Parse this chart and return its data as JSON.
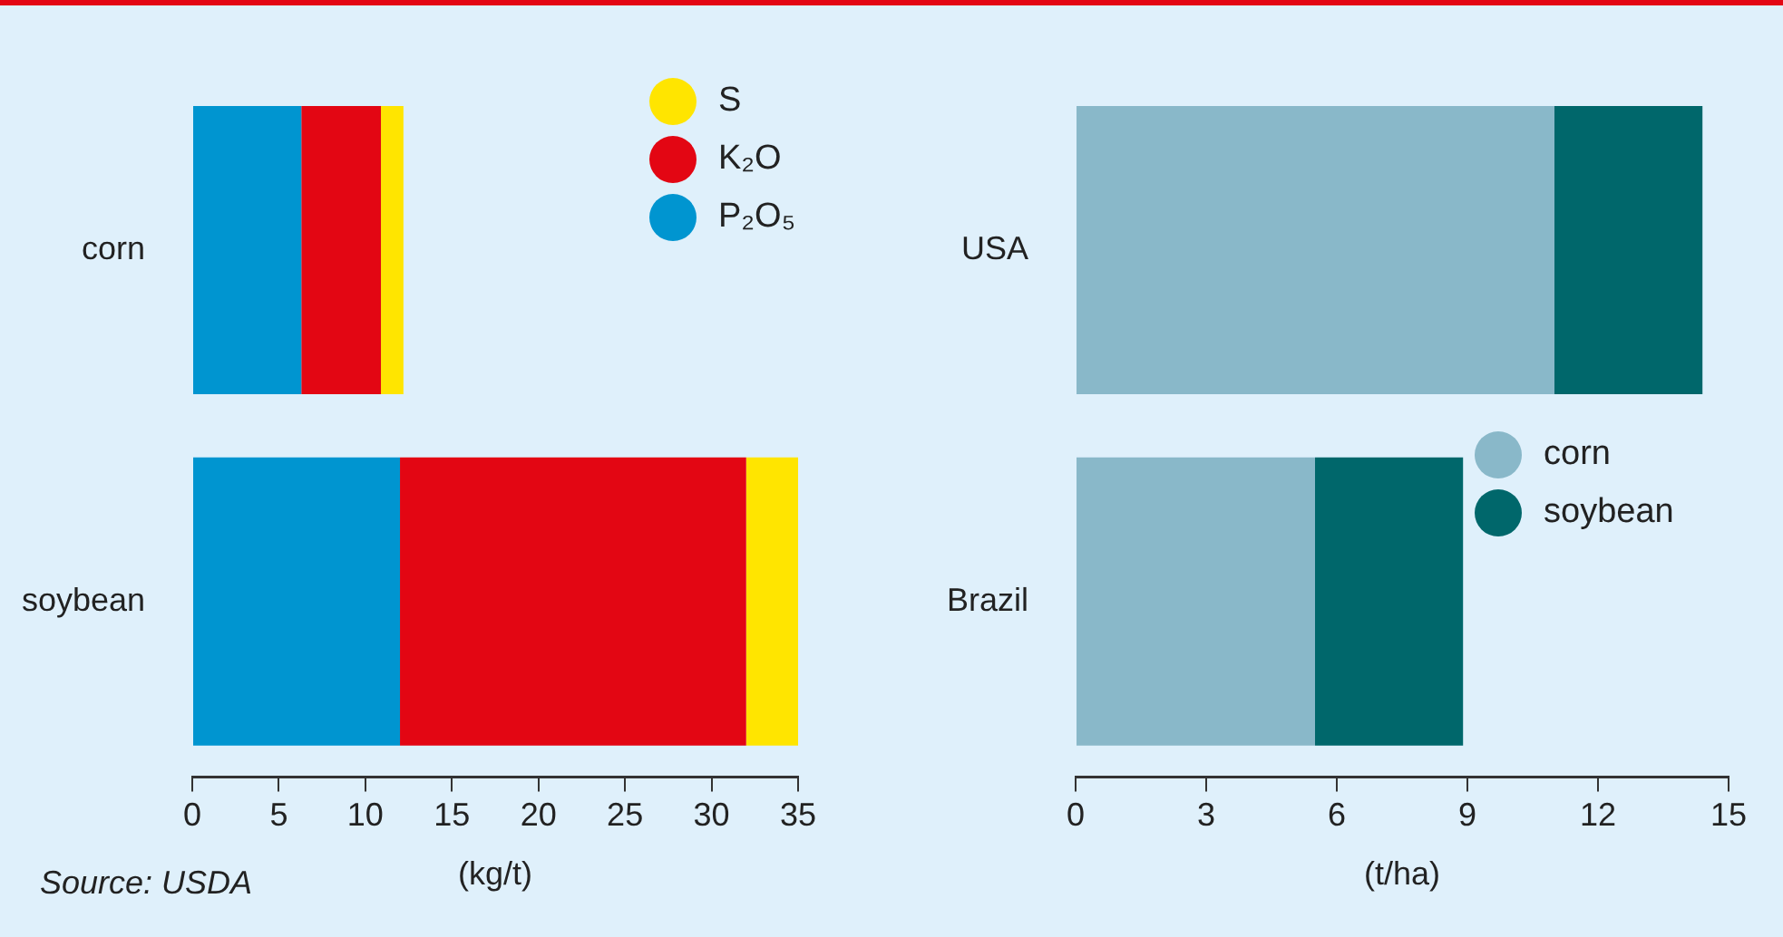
{
  "chart_data": [
    {
      "type": "bar",
      "orientation": "horizontal",
      "stacked": true,
      "categories": [
        "corn",
        "soybean"
      ],
      "series": [
        {
          "name": "P₂O₅",
          "color": "#0095d0",
          "values": [
            6.3,
            12
          ]
        },
        {
          "name": "K₂O",
          "color": "#e30613",
          "values": [
            4.6,
            20
          ]
        },
        {
          "name": "S",
          "color": "#ffe500",
          "values": [
            1.3,
            3
          ]
        }
      ],
      "xlim": [
        0,
        35
      ],
      "xticks": [
        0,
        5,
        10,
        15,
        20,
        25,
        30,
        35
      ],
      "xlabel": "(kg/t)",
      "legend": "top right",
      "annotations": [
        "Source: USDA"
      ]
    },
    {
      "type": "bar",
      "orientation": "horizontal",
      "stacked": true,
      "categories": [
        "USA",
        "Brazil"
      ],
      "series": [
        {
          "name": "corn",
          "color": "#89b8c9",
          "values": [
            11,
            5.5
          ]
        },
        {
          "name": "soybean",
          "color": "#00676b",
          "values": [
            3.4,
            3.4
          ]
        }
      ],
      "xlim": [
        0,
        15
      ],
      "xticks": [
        0,
        3,
        6,
        9,
        12,
        15
      ],
      "xlabel": "(t/ha)",
      "legend": "right"
    }
  ]
}
